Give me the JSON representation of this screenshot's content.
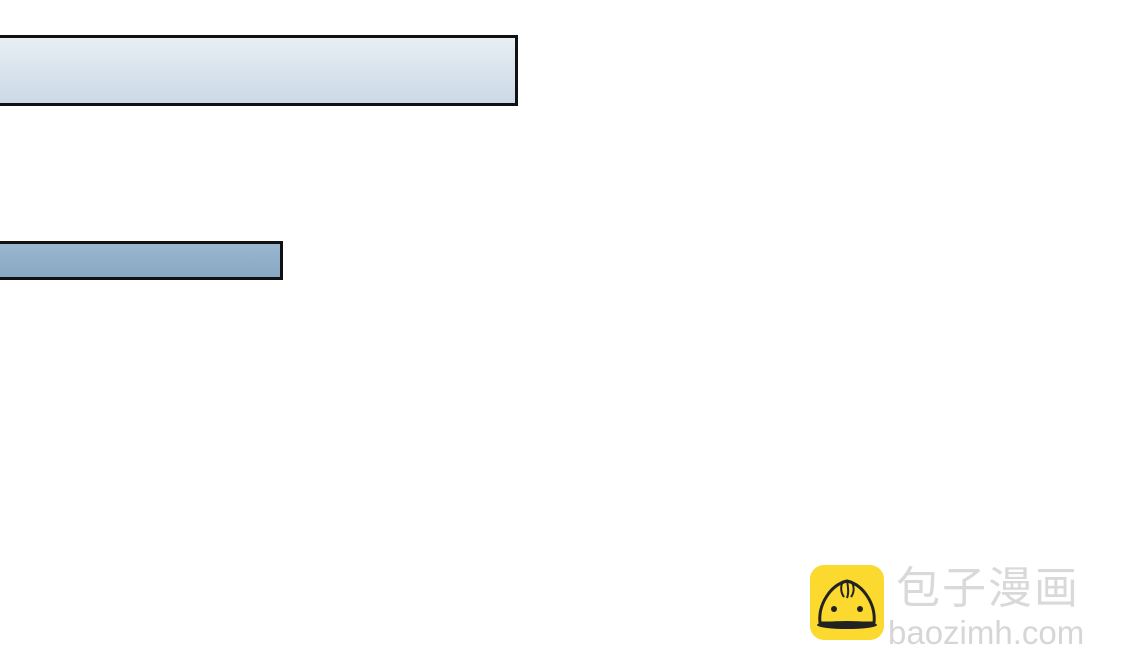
{
  "watermark": {
    "brand_name": "包子漫画",
    "url": "baozimh.com",
    "logo_icon": "steamed-bun-icon",
    "logo_color": "#fbd92f"
  },
  "panels": {
    "top_color": "#dde6ee",
    "bottom_color": "#90aecb"
  }
}
